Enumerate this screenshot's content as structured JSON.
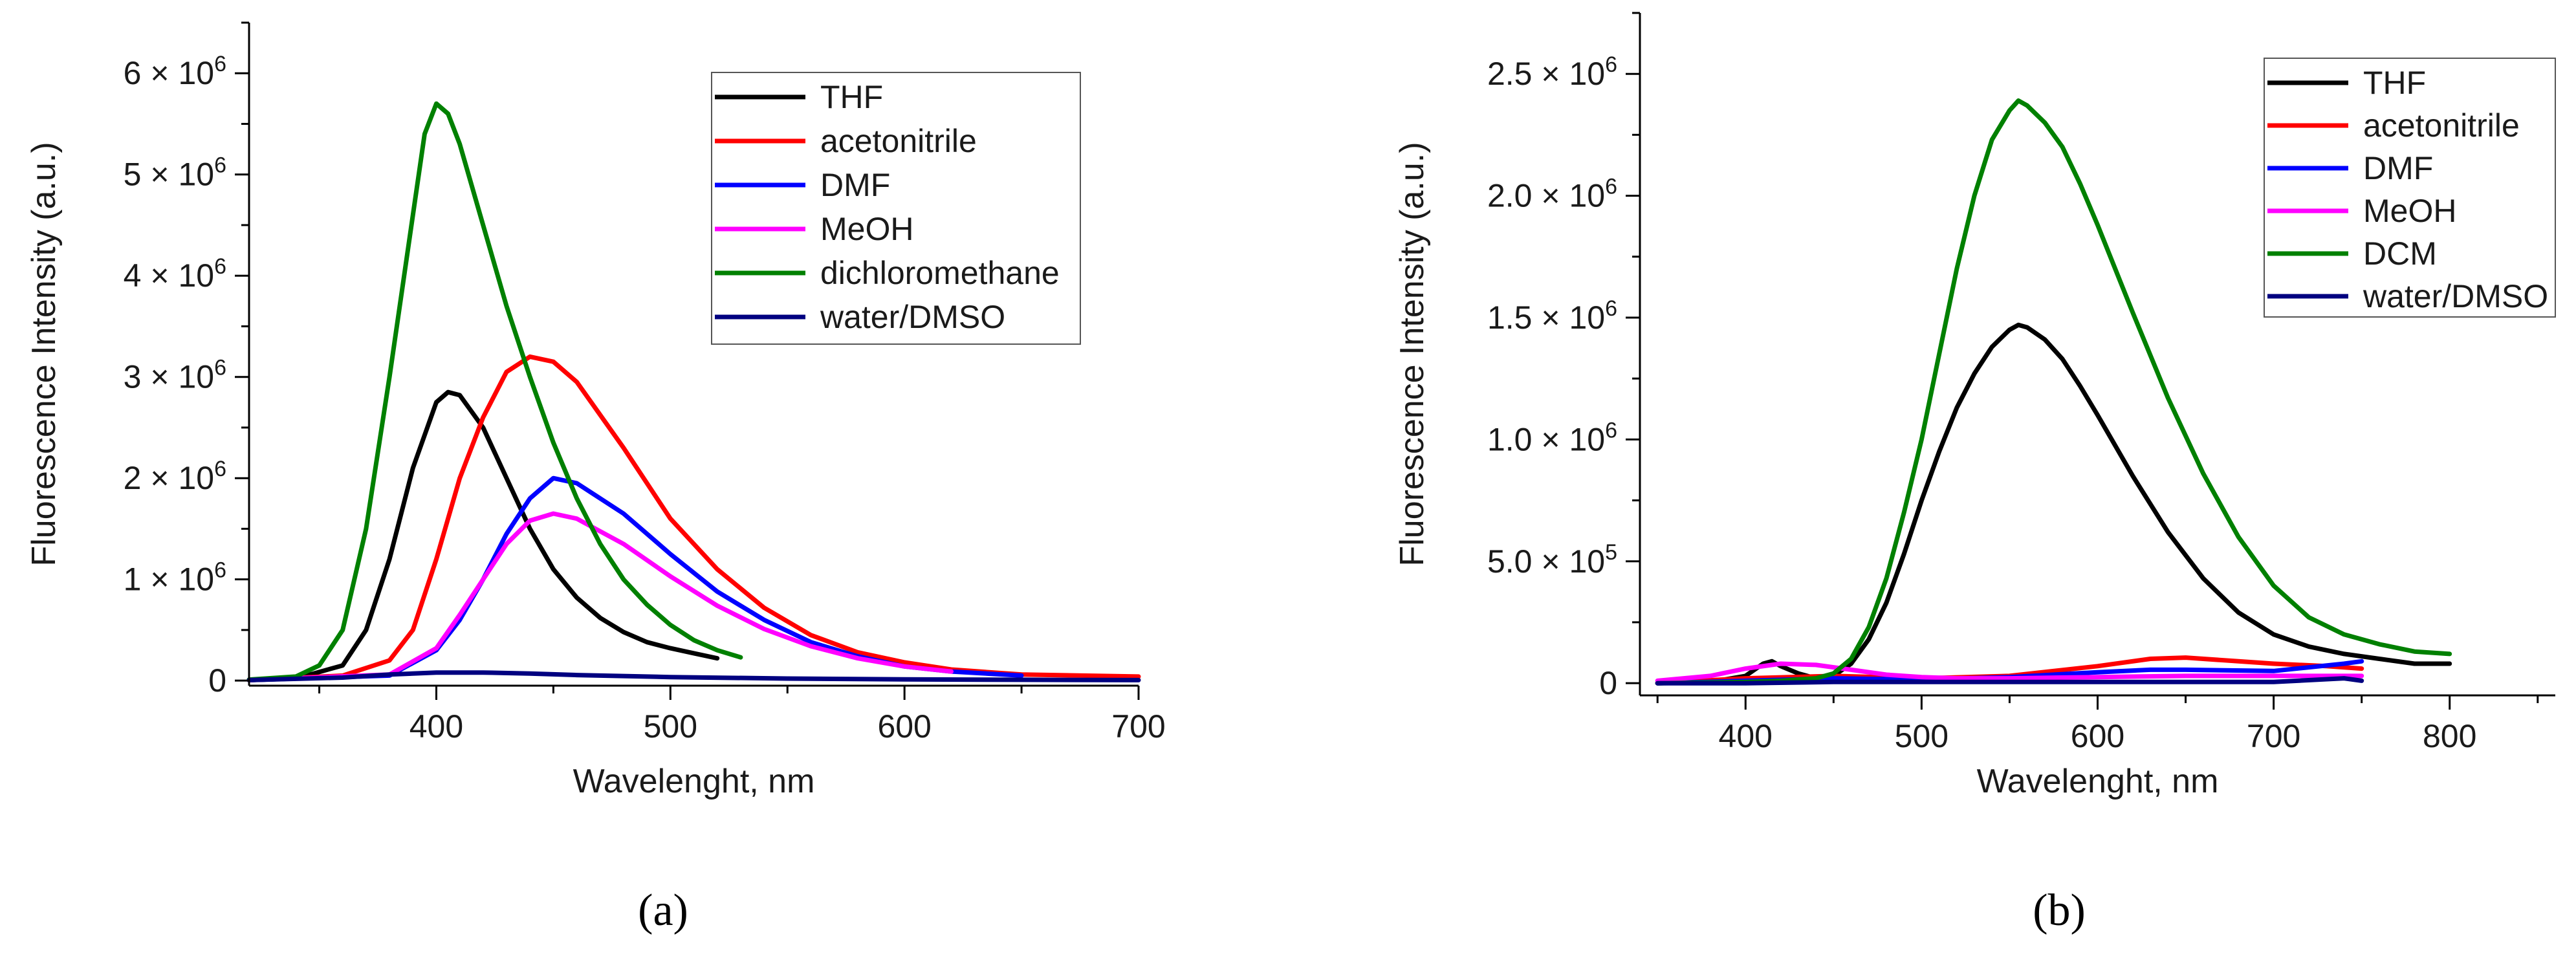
{
  "chart_data": [
    {
      "type": "line",
      "panel_label": "(a)",
      "title": "",
      "xlabel": "Wavelenght, nm",
      "ylabel": "Fluorescence Intensity (a.u.)",
      "xlim": [
        320,
        700
      ],
      "ylim": [
        -50000,
        6500000
      ],
      "xticks": [
        400,
        500,
        600,
        700
      ],
      "yticks": [
        {
          "value": 0,
          "mantissa": "0",
          "exp": ""
        },
        {
          "value": 1000000,
          "mantissa": "1",
          "exp": "6"
        },
        {
          "value": 2000000,
          "mantissa": "2",
          "exp": "6"
        },
        {
          "value": 3000000,
          "mantissa": "3",
          "exp": "6"
        },
        {
          "value": 4000000,
          "mantissa": "4",
          "exp": "6"
        },
        {
          "value": 5000000,
          "mantissa": "5",
          "exp": "6"
        },
        {
          "value": 6000000,
          "mantissa": "6",
          "exp": "6"
        }
      ],
      "times_sign": "×",
      "tick_base": "10",
      "legend_position": "top-right",
      "series": [
        {
          "name": "THF",
          "color": "#000000",
          "x": [
            320,
            340,
            360,
            370,
            380,
            390,
            400,
            405,
            410,
            420,
            430,
            440,
            450,
            460,
            470,
            480,
            490,
            500,
            510,
            520
          ],
          "y": [
            5000,
            20000,
            150000,
            500000,
            1200000,
            2100000,
            2750000,
            2850000,
            2820000,
            2500000,
            2000000,
            1500000,
            1100000,
            820000,
            620000,
            480000,
            380000,
            320000,
            270000,
            220000
          ]
        },
        {
          "name": "acetonitrile",
          "color": "#ff0000",
          "x": [
            320,
            360,
            380,
            390,
            400,
            410,
            420,
            430,
            440,
            450,
            460,
            480,
            500,
            520,
            540,
            560,
            580,
            600,
            620,
            650,
            700
          ],
          "y": [
            5000,
            50000,
            200000,
            500000,
            1200000,
            2000000,
            2600000,
            3050000,
            3200000,
            3150000,
            2950000,
            2300000,
            1600000,
            1100000,
            720000,
            450000,
            280000,
            180000,
            110000,
            60000,
            40000
          ]
        },
        {
          "name": "DMF",
          "color": "#0000ff",
          "x": [
            320,
            380,
            400,
            410,
            420,
            430,
            440,
            450,
            460,
            480,
            500,
            520,
            540,
            560,
            580,
            600,
            620,
            650
          ],
          "y": [
            5000,
            50000,
            300000,
            600000,
            1000000,
            1450000,
            1800000,
            2000000,
            1950000,
            1650000,
            1250000,
            880000,
            600000,
            380000,
            240000,
            140000,
            90000,
            50000
          ]
        },
        {
          "name": "MeOH",
          "color": "#ff00ff",
          "x": [
            320,
            380,
            400,
            410,
            420,
            430,
            440,
            450,
            460,
            480,
            500,
            520,
            540,
            560,
            580,
            600,
            620
          ],
          "y": [
            5000,
            60000,
            320000,
            650000,
            1000000,
            1350000,
            1580000,
            1650000,
            1600000,
            1350000,
            1030000,
            740000,
            510000,
            340000,
            220000,
            140000,
            90000
          ]
        },
        {
          "name": "dichloromethane",
          "color": "#008000",
          "x": [
            320,
            340,
            350,
            360,
            370,
            380,
            390,
            395,
            400,
            405,
            410,
            420,
            430,
            440,
            450,
            460,
            470,
            480,
            490,
            500,
            510,
            520,
            530
          ],
          "y": [
            10000,
            40000,
            150000,
            500000,
            1500000,
            3000000,
            4600000,
            5400000,
            5700000,
            5600000,
            5300000,
            4500000,
            3700000,
            3000000,
            2350000,
            1800000,
            1350000,
            1000000,
            750000,
            550000,
            400000,
            300000,
            230000
          ]
        },
        {
          "name": "water/DMSO",
          "color": "#000080",
          "x": [
            320,
            360,
            380,
            400,
            420,
            440,
            460,
            500,
            550,
            600,
            650,
            700
          ],
          "y": [
            5000,
            30000,
            60000,
            80000,
            80000,
            70000,
            55000,
            35000,
            20000,
            12000,
            8000,
            5000
          ]
        }
      ]
    },
    {
      "type": "line",
      "panel_label": "(b)",
      "title": "",
      "xlabel": "Wavelenght, nm",
      "ylabel": "Fluorescence Intensity (a.u.)",
      "xlim": [
        340,
        860
      ],
      "ylim": [
        -50000,
        2750000
      ],
      "xticks": [
        400,
        500,
        600,
        700,
        800
      ],
      "yticks": [
        {
          "value": 0,
          "mantissa": "0",
          "exp": ""
        },
        {
          "value": 500000,
          "mantissa": "5.0",
          "exp": "5"
        },
        {
          "value": 1000000,
          "mantissa": "1.0",
          "exp": "6"
        },
        {
          "value": 1500000,
          "mantissa": "1.5",
          "exp": "6"
        },
        {
          "value": 2000000,
          "mantissa": "2.0",
          "exp": "6"
        },
        {
          "value": 2500000,
          "mantissa": "2.5",
          "exp": "6"
        }
      ],
      "times_sign": "×",
      "tick_base": "10",
      "legend_position": "top-right",
      "series": [
        {
          "name": "THF",
          "color": "#000000",
          "x": [
            350,
            380,
            400,
            410,
            415,
            420,
            430,
            440,
            450,
            460,
            470,
            480,
            490,
            500,
            510,
            520,
            530,
            540,
            550,
            555,
            560,
            570,
            580,
            590,
            600,
            620,
            640,
            660,
            680,
            700,
            720,
            740,
            760,
            780,
            800
          ],
          "y": [
            0,
            5000,
            30000,
            80000,
            90000,
            70000,
            40000,
            20000,
            30000,
            80000,
            180000,
            330000,
            530000,
            750000,
            950000,
            1130000,
            1270000,
            1380000,
            1450000,
            1470000,
            1460000,
            1410000,
            1330000,
            1220000,
            1100000,
            850000,
            620000,
            430000,
            290000,
            200000,
            150000,
            120000,
            100000,
            80000,
            80000
          ]
        },
        {
          "name": "acetonitrile",
          "color": "#ff0000",
          "x": [
            350,
            400,
            450,
            500,
            550,
            600,
            630,
            650,
            680,
            700,
            730,
            750
          ],
          "y": [
            0,
            20000,
            30000,
            20000,
            30000,
            70000,
            100000,
            105000,
            90000,
            80000,
            70000,
            60000
          ]
        },
        {
          "name": "DMF",
          "color": "#0000ff",
          "x": [
            350,
            400,
            450,
            500,
            550,
            600,
            630,
            650,
            700,
            740,
            750
          ],
          "y": [
            0,
            10000,
            20000,
            15000,
            25000,
            45000,
            55000,
            55000,
            50000,
            80000,
            90000
          ]
        },
        {
          "name": "MeOH",
          "color": "#ff00ff",
          "x": [
            350,
            380,
            400,
            420,
            440,
            460,
            480,
            500,
            520,
            550,
            600,
            650,
            700,
            750
          ],
          "y": [
            10000,
            30000,
            60000,
            80000,
            75000,
            55000,
            35000,
            25000,
            20000,
            20000,
            25000,
            30000,
            30000,
            30000
          ]
        },
        {
          "name": "DCM",
          "color": "#008000",
          "x": [
            350,
            400,
            420,
            440,
            450,
            460,
            470,
            480,
            490,
            500,
            510,
            520,
            530,
            540,
            550,
            555,
            560,
            570,
            580,
            590,
            600,
            620,
            640,
            660,
            680,
            700,
            720,
            740,
            760,
            780,
            800
          ],
          "y": [
            0,
            5000,
            10000,
            20000,
            40000,
            100000,
            230000,
            430000,
            700000,
            1000000,
            1350000,
            1700000,
            2000000,
            2230000,
            2350000,
            2390000,
            2370000,
            2300000,
            2200000,
            2050000,
            1880000,
            1520000,
            1170000,
            860000,
            600000,
            400000,
            270000,
            200000,
            160000,
            130000,
            120000
          ]
        },
        {
          "name": "water/DMSO",
          "color": "#000080",
          "x": [
            350,
            400,
            450,
            500,
            550,
            600,
            650,
            700,
            740,
            750
          ],
          "y": [
            0,
            0,
            5000,
            5000,
            5000,
            5000,
            5000,
            5000,
            20000,
            10000
          ]
        }
      ]
    }
  ]
}
